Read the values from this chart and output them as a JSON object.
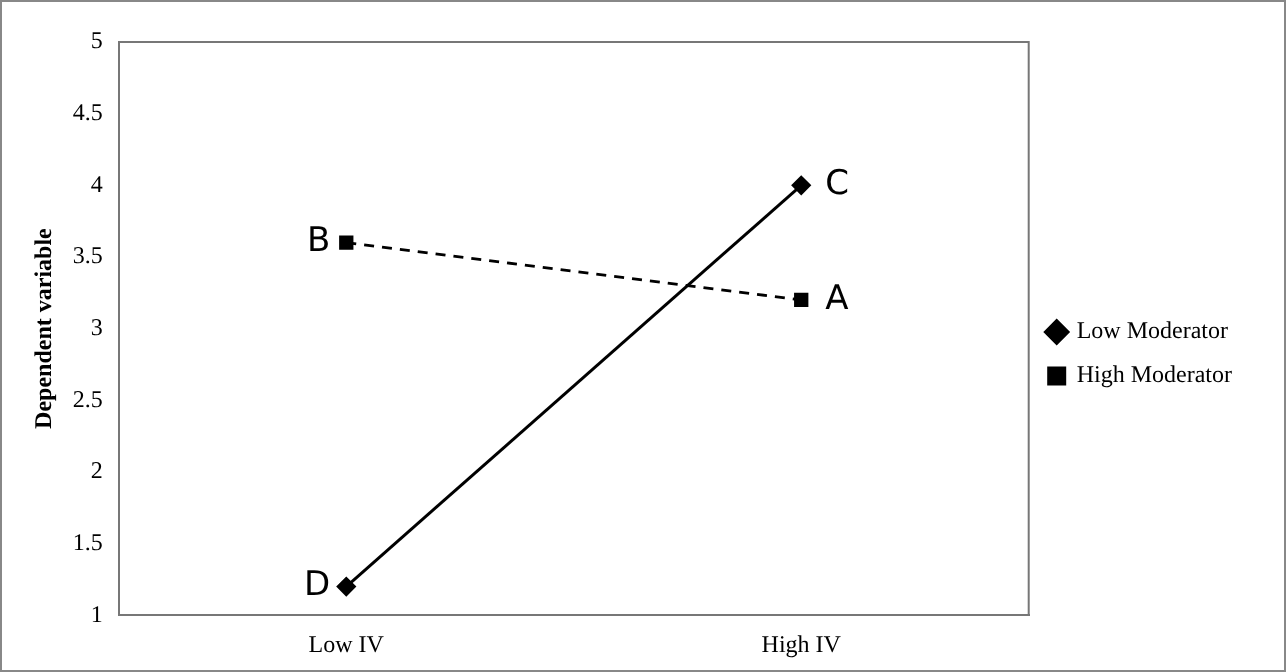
{
  "chart_data": {
    "type": "line",
    "ylabel": "Dependent variable",
    "categories": [
      "Low IV",
      "High IV"
    ],
    "series": [
      {
        "name": "Low Moderator",
        "color": "#000000",
        "values": [
          1.2,
          4.0
        ],
        "marker": "diamond",
        "line_style": "solid"
      },
      {
        "name": "High Moderator",
        "color": "#000000",
        "values": [
          3.6,
          3.2
        ],
        "marker": "square",
        "line_style": "dashed"
      }
    ],
    "ylim": [
      1,
      5
    ],
    "yticks": [
      1,
      1.5,
      2,
      2.5,
      3,
      3.5,
      4,
      4.5,
      5
    ],
    "grid": false,
    "legend": "right",
    "annotations": [
      {
        "text": "D",
        "x": "Low IV",
        "y": 1.2
      },
      {
        "text": "B",
        "x": "Low IV",
        "y": 3.6
      },
      {
        "text": "C",
        "x": "High IV",
        "y": 4.0
      },
      {
        "text": "A",
        "x": "High IV",
        "y": 3.2
      }
    ]
  }
}
